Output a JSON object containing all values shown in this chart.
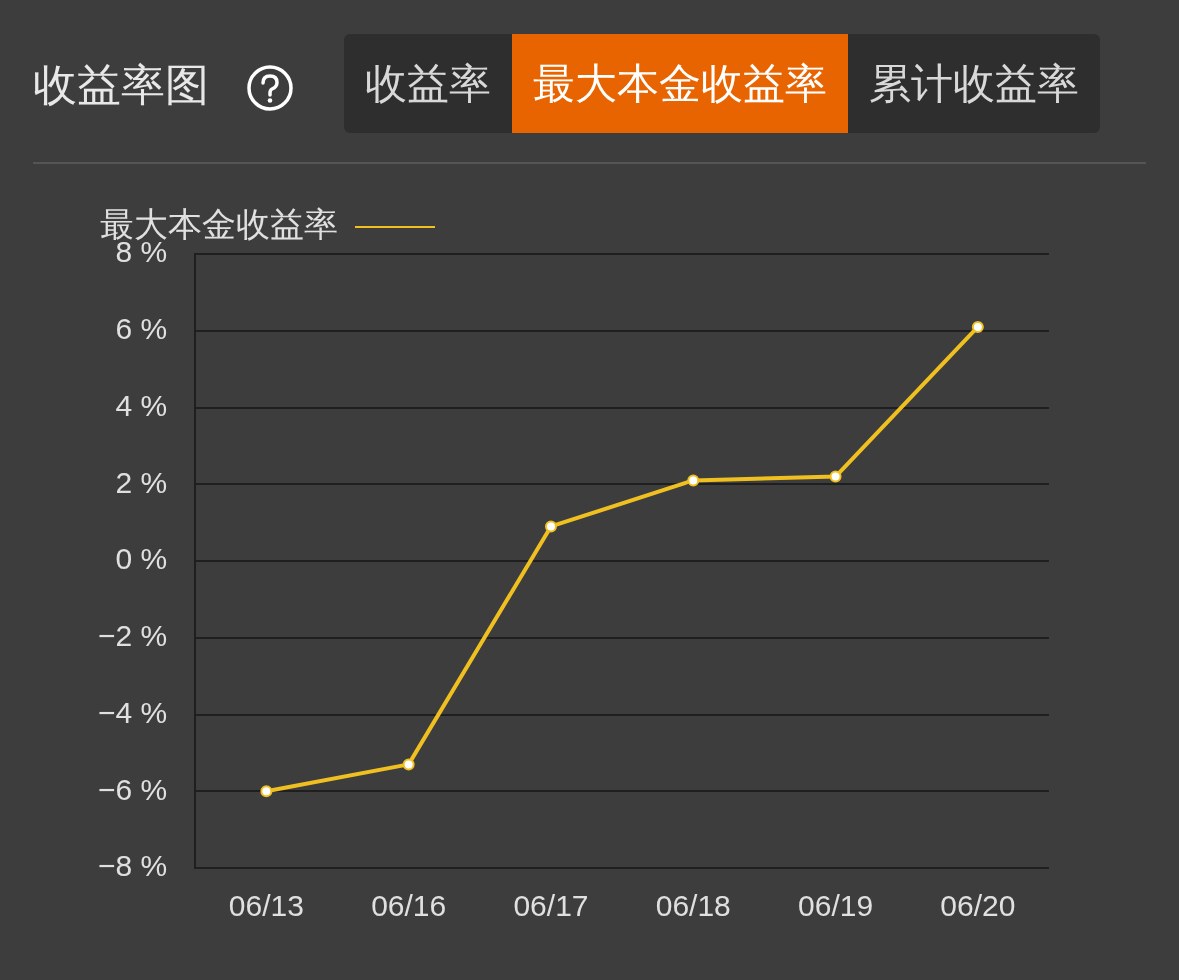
{
  "chart_data": {
    "type": "line",
    "title": "收益率图",
    "annotations": [
      "收益率",
      "最大本金收益率",
      "累计收益率"
    ],
    "categories": [
      "06/13",
      "06/16",
      "06/17",
      "06/18",
      "06/19",
      "06/20"
    ],
    "series": [
      {
        "name": "最大本金收益率",
        "color": "#f0c020",
        "values": [
          -6.0,
          -5.3,
          0.9,
          2.1,
          2.2,
          6.1
        ]
      }
    ],
    "ylim": [
      -8,
      8
    ],
    "yticks": [
      {
        "value": -8,
        "label": "−8 %"
      },
      {
        "value": -6,
        "label": "−6 %"
      },
      {
        "value": -4,
        "label": "−4 %"
      },
      {
        "value": -2,
        "label": "−2 %"
      },
      {
        "value": 0,
        "label": "0 %"
      },
      {
        "value": 2,
        "label": "2 %"
      },
      {
        "value": 4,
        "label": "4 %"
      },
      {
        "value": 6,
        "label": "6 %"
      },
      {
        "value": 8,
        "label": "8 %"
      }
    ],
    "grid": "y",
    "legend": "top left",
    "marker": "circle",
    "line_style": "solid"
  }
}
